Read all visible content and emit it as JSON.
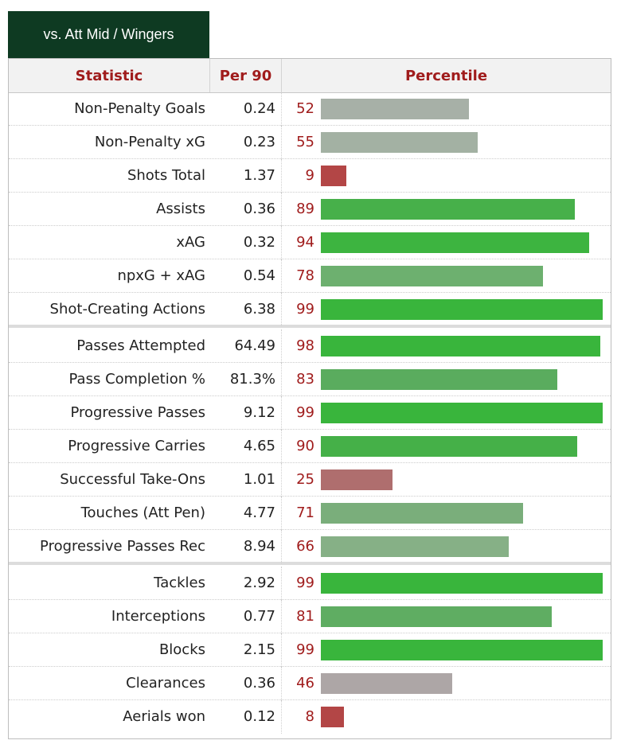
{
  "tab": {
    "label": "vs. Att Mid / Wingers"
  },
  "headers": {
    "statistic": "Statistic",
    "per90": "Per 90",
    "percentile": "Percentile"
  },
  "bar_colors": {
    "elite": "#3ab03e",
    "high": "#5aac5e",
    "upper_mid": "#6db071",
    "mid_high": "#80b280",
    "mid": "#a6b3a6",
    "mid_low": "#af9e9e",
    "low": "#b06a6a",
    "very_low": "#b34646"
  },
  "rows": [
    {
      "statistic": "Non-Penalty Goals",
      "per90": "0.24",
      "percentile": "52",
      "value": 52,
      "color": "#a7b0a7",
      "group_end": false
    },
    {
      "statistic": "Non-Penalty xG",
      "per90": "0.23",
      "percentile": "55",
      "value": 55,
      "color": "#a3b1a3",
      "group_end": false
    },
    {
      "statistic": "Shots Total",
      "per90": "1.37",
      "percentile": "9",
      "value": 9,
      "color": "#b34646",
      "group_end": false
    },
    {
      "statistic": "Assists",
      "per90": "0.36",
      "percentile": "89",
      "value": 89,
      "color": "#47b04a",
      "group_end": false
    },
    {
      "statistic": "xAG",
      "per90": "0.32",
      "percentile": "94",
      "value": 94,
      "color": "#3db440",
      "group_end": false
    },
    {
      "statistic": "npxG + xAG",
      "per90": "0.54",
      "percentile": "78",
      "value": 78,
      "color": "#6db06f",
      "group_end": false
    },
    {
      "statistic": "Shot-Creating Actions",
      "per90": "6.38",
      "percentile": "99",
      "value": 99,
      "color": "#39b53c",
      "group_end": true
    },
    {
      "statistic": "Passes Attempted",
      "per90": "64.49",
      "percentile": "98",
      "value": 98,
      "color": "#39b53c",
      "group_end": false
    },
    {
      "statistic": "Pass Completion %",
      "per90": "81.3%",
      "percentile": "83",
      "value": 83,
      "color": "#5aac5e",
      "group_end": false
    },
    {
      "statistic": "Progressive Passes",
      "per90": "9.12",
      "percentile": "99",
      "value": 99,
      "color": "#39b53c",
      "group_end": false
    },
    {
      "statistic": "Progressive Carries",
      "per90": "4.65",
      "percentile": "90",
      "value": 90,
      "color": "#45b048",
      "group_end": false
    },
    {
      "statistic": "Successful Take-Ons",
      "per90": "1.01",
      "percentile": "25",
      "value": 25,
      "color": "#af6e6e",
      "group_end": false
    },
    {
      "statistic": "Touches (Att Pen)",
      "per90": "4.77",
      "percentile": "71",
      "value": 71,
      "color": "#7aae7b",
      "group_end": false
    },
    {
      "statistic": "Progressive Passes Rec",
      "per90": "8.94",
      "percentile": "66",
      "value": 66,
      "color": "#86b086",
      "group_end": true
    },
    {
      "statistic": "Tackles",
      "per90": "2.92",
      "percentile": "99",
      "value": 99,
      "color": "#39b53c",
      "group_end": false
    },
    {
      "statistic": "Interceptions",
      "per90": "0.77",
      "percentile": "81",
      "value": 81,
      "color": "#5fad62",
      "group_end": false
    },
    {
      "statistic": "Blocks",
      "per90": "2.15",
      "percentile": "99",
      "value": 99,
      "color": "#39b53c",
      "group_end": false
    },
    {
      "statistic": "Clearances",
      "per90": "0.36",
      "percentile": "46",
      "value": 46,
      "color": "#ada6a6",
      "group_end": false
    },
    {
      "statistic": "Aerials won",
      "per90": "0.12",
      "percentile": "8",
      "value": 8,
      "color": "#b34646",
      "group_end": false
    }
  ]
}
